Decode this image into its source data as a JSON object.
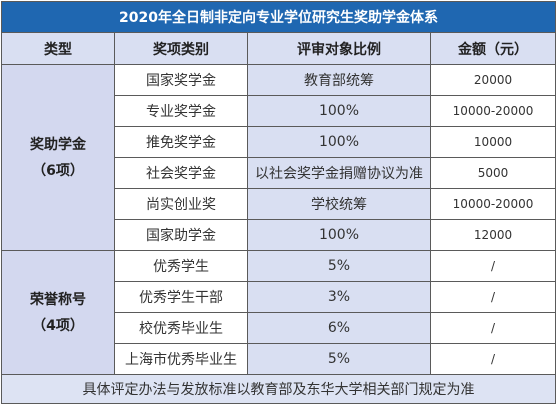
{
  "title": "2020年全日制非定向专业学位研究生奖助学金体系",
  "headers": {
    "type": "类型",
    "name": "奖项类别",
    "ratio": "评审对象比例",
    "amount": "金额（元）"
  },
  "groups": [
    {
      "label": "奖助学金",
      "count": "（6项）",
      "rows": [
        {
          "name": "国家奖学金",
          "ratio": "教育部统筹",
          "amount": "20000"
        },
        {
          "name": "专业奖学金",
          "ratio": "100%",
          "amount": "10000-20000"
        },
        {
          "name": "推免奖学金",
          "ratio": "100%",
          "amount": "10000"
        },
        {
          "name": "社会奖学金",
          "ratio": "以社会奖学金捐赠协议为准",
          "amount": "5000"
        },
        {
          "name": "尚实创业奖",
          "ratio": "学校统筹",
          "amount": "10000-20000"
        },
        {
          "name": "国家助学金",
          "ratio": "100%",
          "amount": "12000"
        }
      ]
    },
    {
      "label": "荣誉称号",
      "count": "（4项）",
      "rows": [
        {
          "name": "优秀学生",
          "ratio": "5%",
          "amount": "/"
        },
        {
          "name": "优秀学生干部",
          "ratio": "3%",
          "amount": "/"
        },
        {
          "name": "校优秀毕业生",
          "ratio": "6%",
          "amount": "/"
        },
        {
          "name": "上海市优秀毕业生",
          "ratio": "5%",
          "amount": "/"
        }
      ]
    }
  ],
  "footer": "具体评定办法与发放标准以教育部及东华大学相关部门规定为准"
}
